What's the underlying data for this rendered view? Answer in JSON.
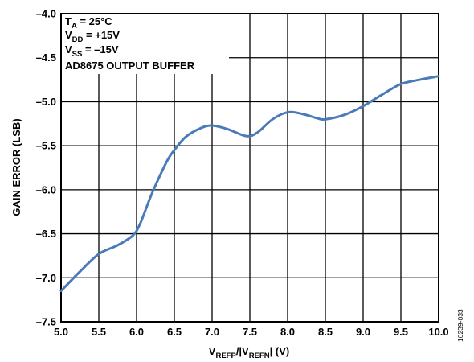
{
  "chart_data": {
    "type": "line",
    "xlabel": {
      "main": "V",
      "sub1": "REFP",
      "mid": "/|V",
      "sub2": "REFN",
      "end": "| (V)"
    },
    "ylabel": "GAIN ERROR (LSB)",
    "xlim": [
      5.0,
      10.0
    ],
    "ylim": [
      -7.5,
      -4.0
    ],
    "x_ticks": [
      "5.0",
      "5.5",
      "6.0",
      "6.5",
      "7.0",
      "7.5",
      "8.0",
      "8.5",
      "9.0",
      "9.5",
      "10.0"
    ],
    "y_ticks": [
      "–4.0",
      "–4.5",
      "–5.0",
      "–5.5",
      "–6.0",
      "–6.5",
      "–7.0",
      "–7.5"
    ],
    "grid": true,
    "line_color": "#4a7ab8",
    "series": [
      {
        "x": [
          5.0,
          5.25,
          5.5,
          5.75,
          5.95,
          6.05,
          6.2,
          6.4,
          6.5,
          6.65,
          6.85,
          7.0,
          7.2,
          7.45,
          7.6,
          7.8,
          8.0,
          8.2,
          8.4,
          8.5,
          8.75,
          9.0,
          9.25,
          9.5,
          9.75,
          10.0
        ],
        "y": [
          -7.15,
          -6.93,
          -6.73,
          -6.63,
          -6.52,
          -6.38,
          -6.05,
          -5.68,
          -5.55,
          -5.4,
          -5.3,
          -5.27,
          -5.31,
          -5.39,
          -5.35,
          -5.2,
          -5.12,
          -5.14,
          -5.19,
          -5.2,
          -5.15,
          -5.05,
          -4.92,
          -4.8,
          -4.75,
          -4.71
        ]
      }
    ],
    "annotations": {
      "line1": {
        "main": "T",
        "sub": "A",
        "rest": " = 25°C"
      },
      "line2": {
        "main": "V",
        "sub": "DD",
        "rest": " = +15V"
      },
      "line3": {
        "main": "V",
        "sub": "SS",
        "rest": " = –15V"
      },
      "line4": "AD8675 OUTPUT BUFFER"
    },
    "figure_id": "10239-033"
  }
}
